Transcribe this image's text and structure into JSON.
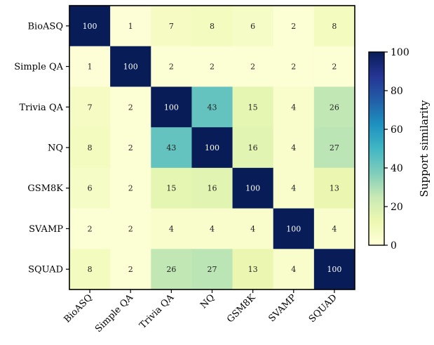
{
  "chart_data": {
    "type": "heatmap",
    "rows": [
      "BioASQ",
      "Simple QA",
      "Trivia QA",
      "NQ",
      "GSM8K",
      "SVAMP",
      "SQUAD"
    ],
    "cols": [
      "BioASQ",
      "Simple QA",
      "Trivia QA",
      "NQ",
      "GSM8K",
      "SVAMP",
      "SQUAD"
    ],
    "values": [
      [
        100,
        1,
        7,
        8,
        6,
        2,
        8
      ],
      [
        1,
        100,
        2,
        2,
        2,
        2,
        2
      ],
      [
        7,
        2,
        100,
        43,
        15,
        4,
        26
      ],
      [
        8,
        2,
        43,
        100,
        16,
        4,
        27
      ],
      [
        6,
        2,
        15,
        16,
        100,
        4,
        13
      ],
      [
        2,
        2,
        4,
        4,
        4,
        100,
        4
      ],
      [
        8,
        2,
        26,
        27,
        13,
        4,
        100
      ]
    ],
    "colormap": "YlGnBu",
    "vmin": 0,
    "vmax": 100,
    "colorbar": {
      "label": "Support similarity",
      "ticks": [
        0,
        20,
        40,
        60,
        80,
        100
      ]
    }
  }
}
